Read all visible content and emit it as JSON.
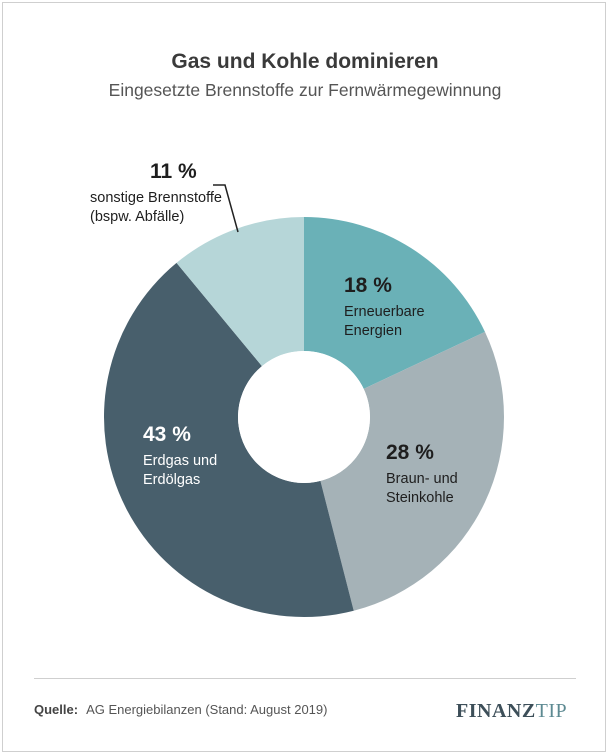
{
  "title": "Gas und Kohle dominieren",
  "subtitle": "Eingesetzte Brennstoffe zur Fernwärmegewinnung",
  "chart_data": {
    "type": "pie",
    "title": "Gas und Kohle dominieren",
    "subtitle": "Eingesetzte Brennstoffe zur Fernwärmegewinnung",
    "donut": true,
    "start": "12 o'clock, clockwise",
    "slices": [
      {
        "label": "Erneuerbare Energien",
        "lines": [
          "Erneuerbare",
          "Energien"
        ],
        "value": 18,
        "value_label": "18 %",
        "color": "#6ab1b7",
        "text_color": "#1e1e1e"
      },
      {
        "label": "Braun- und Steinkohle",
        "lines": [
          "Braun- und",
          "Steinkohle"
        ],
        "value": 28,
        "value_label": "28 %",
        "color": "#a5b2b7",
        "text_color": "#1e1e1e"
      },
      {
        "label": "Erdgas und Erdölgas",
        "lines": [
          "Erdgas und",
          "Erdölgas"
        ],
        "value": 43,
        "value_label": "43 %",
        "color": "#485f6c",
        "text_color": "#ffffff"
      },
      {
        "label": "sonstige Brennstoffe (bspw. Abfälle)",
        "lines": [
          "sonstige Brennstoffe",
          "(bspw. Abfälle)"
        ],
        "value": 11,
        "value_label": "11 %",
        "color": "#b6d6d8",
        "text_color": "#1e1e1e",
        "label_outside": true
      }
    ]
  },
  "footer": {
    "source_label": "Quelle:",
    "source_text": "AG Energiebilanzen (Stand: August 2019)",
    "logo_part1": "FINANZ",
    "logo_part2": "TIP"
  }
}
